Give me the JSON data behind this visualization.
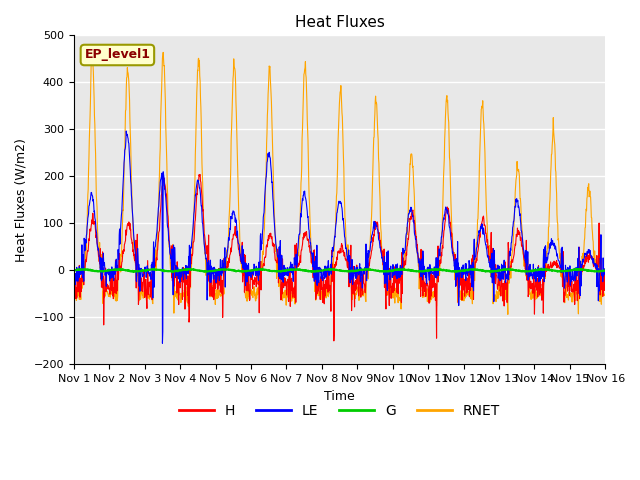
{
  "title": "Heat Fluxes",
  "ylabel": "Heat Fluxes (W/m2)",
  "xlabel": "Time",
  "ylim": [
    -200,
    500
  ],
  "legend_label": "EP_level1",
  "series_names": [
    "H",
    "LE",
    "G",
    "RNET"
  ],
  "series_colors": [
    "red",
    "blue",
    "#00cc00",
    "orange"
  ],
  "background_color": "#e8e8e8",
  "xtick_labels": [
    "Nov 1",
    "Nov 2",
    "Nov 3",
    "Nov 4",
    "Nov 5",
    "Nov 6",
    "Nov 7",
    "Nov 8",
    "Nov 9",
    "Nov 10",
    "Nov 11",
    "Nov 12",
    "Nov 13",
    "Nov 14",
    "Nov 15",
    "Nov 16"
  ],
  "title_fontsize": 11,
  "label_fontsize": 9,
  "tick_fontsize": 8,
  "n_days": 15,
  "n_per_day": 96,
  "rnet_peaks": [
    450,
    430,
    460,
    450,
    440,
    430,
    435,
    385,
    360,
    245,
    365,
    355,
    220,
    295,
    180
  ],
  "h_peaks": [
    110,
    100,
    195,
    200,
    80,
    75,
    80,
    50,
    100,
    125,
    130,
    110,
    80,
    15,
    30
  ],
  "le_peaks": [
    160,
    290,
    210,
    190,
    125,
    250,
    165,
    150,
    100,
    130,
    130,
    95,
    150,
    60,
    40
  ]
}
